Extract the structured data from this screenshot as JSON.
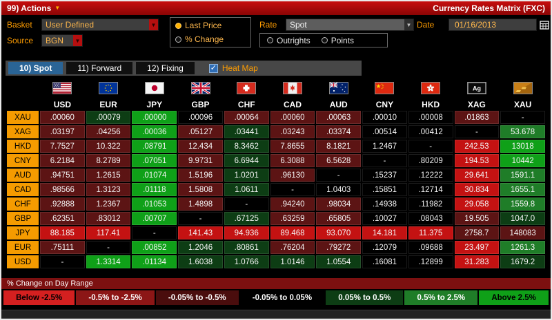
{
  "titlebar": {
    "actions": "99) Actions",
    "title": "Currency Rates Matrix (FXC)"
  },
  "controls": {
    "basket": {
      "label": "Basket",
      "value": "User Defined"
    },
    "source": {
      "label": "Source",
      "value": "BGN"
    },
    "price_mode": {
      "options": [
        {
          "label": "Last Price",
          "selected": true
        },
        {
          "label": "% Change",
          "selected": false
        }
      ]
    },
    "rate": {
      "label": "Rate",
      "value": "Spot",
      "options": [
        {
          "label": "Outrights",
          "selected": false
        },
        {
          "label": "Points",
          "selected": false
        }
      ]
    },
    "date": {
      "label": "Date",
      "value": "01/16/2013"
    }
  },
  "tabs": [
    {
      "label": "10) Spot",
      "active": true
    },
    {
      "label": "11) Forward",
      "active": false
    },
    {
      "label": "12) Fixing",
      "active": false
    }
  ],
  "heat_map": {
    "label": "Heat Map",
    "checked": true
  },
  "matrix": {
    "columns": [
      {
        "code": "USD",
        "flag": "us"
      },
      {
        "code": "EUR",
        "flag": "eu"
      },
      {
        "code": "JPY",
        "flag": "jp"
      },
      {
        "code": "GBP",
        "flag": "gb"
      },
      {
        "code": "CHF",
        "flag": "ch"
      },
      {
        "code": "CAD",
        "flag": "ca"
      },
      {
        "code": "AUD",
        "flag": "au"
      },
      {
        "code": "CNY",
        "flag": "cn"
      },
      {
        "code": "HKD",
        "flag": "hk"
      },
      {
        "code": "XAG",
        "flag": "ag"
      },
      {
        "code": "XAU",
        "flag": "xau"
      }
    ],
    "rows": [
      {
        "label": "XAU",
        "values": [
          ".00060",
          ".00079",
          ".00000",
          ".00096",
          ".00064",
          ".00060",
          ".00063",
          ".00010",
          ".00008",
          ".01863",
          "-"
        ],
        "heat": [
          "r",
          "g",
          "G",
          "K",
          "r",
          "r",
          "r",
          "K",
          "K",
          "r",
          "K"
        ]
      },
      {
        "label": "XAG",
        "values": [
          ".03197",
          ".04256",
          ".00036",
          ".05127",
          ".03441",
          ".03243",
          ".03374",
          ".00514",
          ".00412",
          "-",
          "53.678"
        ],
        "heat": [
          "r",
          "r",
          "G",
          "r",
          "g",
          "r",
          "r",
          "K",
          "K",
          "K",
          "M"
        ]
      },
      {
        "label": "HKD",
        "values": [
          "7.7527",
          "10.322",
          ".08791",
          "12.434",
          "8.3462",
          "7.8655",
          "8.1821",
          "1.2467",
          "-",
          "242.53",
          "13018"
        ],
        "heat": [
          "r",
          "r",
          "G",
          "r",
          "g",
          "r",
          "r",
          "K",
          "K",
          "R",
          "G"
        ]
      },
      {
        "label": "CNY",
        "values": [
          "6.2184",
          "8.2789",
          ".07051",
          "9.9731",
          "6.6944",
          "6.3088",
          "6.5628",
          "-",
          ".80209",
          "194.53",
          "10442"
        ],
        "heat": [
          "r",
          "r",
          "G",
          "r",
          "g",
          "r",
          "r",
          "K",
          "K",
          "R",
          "G"
        ]
      },
      {
        "label": "AUD",
        "values": [
          ".94751",
          "1.2615",
          ".01074",
          "1.5196",
          "1.0201",
          ".96130",
          "-",
          ".15237",
          ".12222",
          "29.641",
          "1591.1"
        ],
        "heat": [
          "r",
          "r",
          "G",
          "r",
          "g",
          "r",
          "K",
          "K",
          "K",
          "R",
          "M"
        ]
      },
      {
        "label": "CAD",
        "values": [
          ".98566",
          "1.3123",
          ".01118",
          "1.5808",
          "1.0611",
          "-",
          "1.0403",
          ".15851",
          ".12714",
          "30.834",
          "1655.1"
        ],
        "heat": [
          "r",
          "r",
          "G",
          "r",
          "g",
          "K",
          "K",
          "K",
          "K",
          "R",
          "M"
        ]
      },
      {
        "label": "CHF",
        "values": [
          ".92888",
          "1.2367",
          ".01053",
          "1.4898",
          "-",
          ".94240",
          ".98034",
          ".14938",
          ".11982",
          "29.058",
          "1559.8"
        ],
        "heat": [
          "r",
          "r",
          "G",
          "r",
          "K",
          "r",
          "r",
          "K",
          "K",
          "R",
          "M"
        ]
      },
      {
        "label": "GBP",
        "values": [
          ".62351",
          ".83012",
          ".00707",
          "-",
          ".67125",
          ".63259",
          ".65805",
          ".10027",
          ".08043",
          "19.505",
          "1047.0"
        ],
        "heat": [
          "r",
          "r",
          "G",
          "K",
          "g",
          "r",
          "r",
          "K",
          "K",
          "r",
          "g"
        ]
      },
      {
        "label": "JPY",
        "values": [
          "88.185",
          "117.41",
          "-",
          "141.43",
          "94.936",
          "89.468",
          "93.070",
          "14.181",
          "11.375",
          "2758.7",
          "148083"
        ],
        "heat": [
          "R",
          "R",
          "K",
          "R",
          "R",
          "R",
          "R",
          "R",
          "R",
          "r",
          "r"
        ]
      },
      {
        "label": "EUR",
        "values": [
          ".75111",
          "-",
          ".00852",
          "1.2046",
          ".80861",
          ".76204",
          ".79272",
          ".12079",
          ".09688",
          "23.497",
          "1261.3"
        ],
        "heat": [
          "r",
          "K",
          "G",
          "g",
          "g",
          "r",
          "r",
          "K",
          "K",
          "R",
          "M"
        ]
      },
      {
        "label": "USD",
        "values": [
          "-",
          "1.3314",
          ".01134",
          "1.6038",
          "1.0766",
          "1.0146",
          "1.0554",
          ".16081",
          ".12899",
          "31.283",
          "1679.2"
        ],
        "heat": [
          "K",
          "G",
          "G",
          "g",
          "g",
          "g",
          "g",
          "K",
          "K",
          "R",
          "g"
        ]
      }
    ]
  },
  "heat_colors": {
    "R": "#c41212",
    "r": "#5c1414",
    "K": "#000000",
    "g": "#0d3d14",
    "M": "#1f7d28",
    "G": "#0fa018"
  },
  "legend": {
    "title": "% Change on Day Range",
    "buckets": [
      {
        "label": "Below -2.5%",
        "bg": "#d42020",
        "fg": "#000000"
      },
      {
        "label": "-0.5% to -2.5%",
        "bg": "#8c1616",
        "fg": "#ffffff"
      },
      {
        "label": "-0.05% to -0.5%",
        "bg": "#4a0d0d",
        "fg": "#ffffff"
      },
      {
        "label": "-0.05% to 0.05%",
        "bg": "#000000",
        "fg": "#ffffff"
      },
      {
        "label": "0.05% to 0.5%",
        "bg": "#0d3d14",
        "fg": "#ffffff"
      },
      {
        "label": "0.5% to 2.5%",
        "bg": "#1f7d28",
        "fg": "#ffffff"
      },
      {
        "label": "Above 2.5%",
        "bg": "#0fa018",
        "fg": "#000000"
      }
    ]
  }
}
